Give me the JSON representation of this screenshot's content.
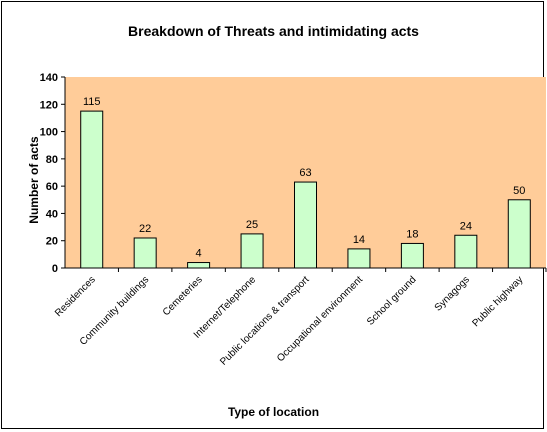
{
  "chart_data": {
    "type": "bar",
    "title": "Breakdown of Threats and intimidating acts",
    "xlabel": "Type of location",
    "ylabel": "Number of acts",
    "categories": [
      "Residences",
      "Community buildings",
      "Cemeteries",
      "Internet/Telephone",
      "Public locations & transport",
      "Occupational environment",
      "School ground",
      "Synagogs",
      "Public highway"
    ],
    "values": [
      115,
      22,
      4,
      25,
      63,
      14,
      18,
      24,
      50
    ],
    "ylim": [
      0,
      140
    ],
    "yticks": [
      "0",
      "20",
      "40",
      "60",
      "80",
      "100",
      "120",
      "140"
    ],
    "grid": false,
    "legend": "none",
    "colors": {
      "plot_bg": "#FFCC99",
      "bar_fill": "#CCFFCC",
      "bar_stroke": "#000000"
    }
  }
}
